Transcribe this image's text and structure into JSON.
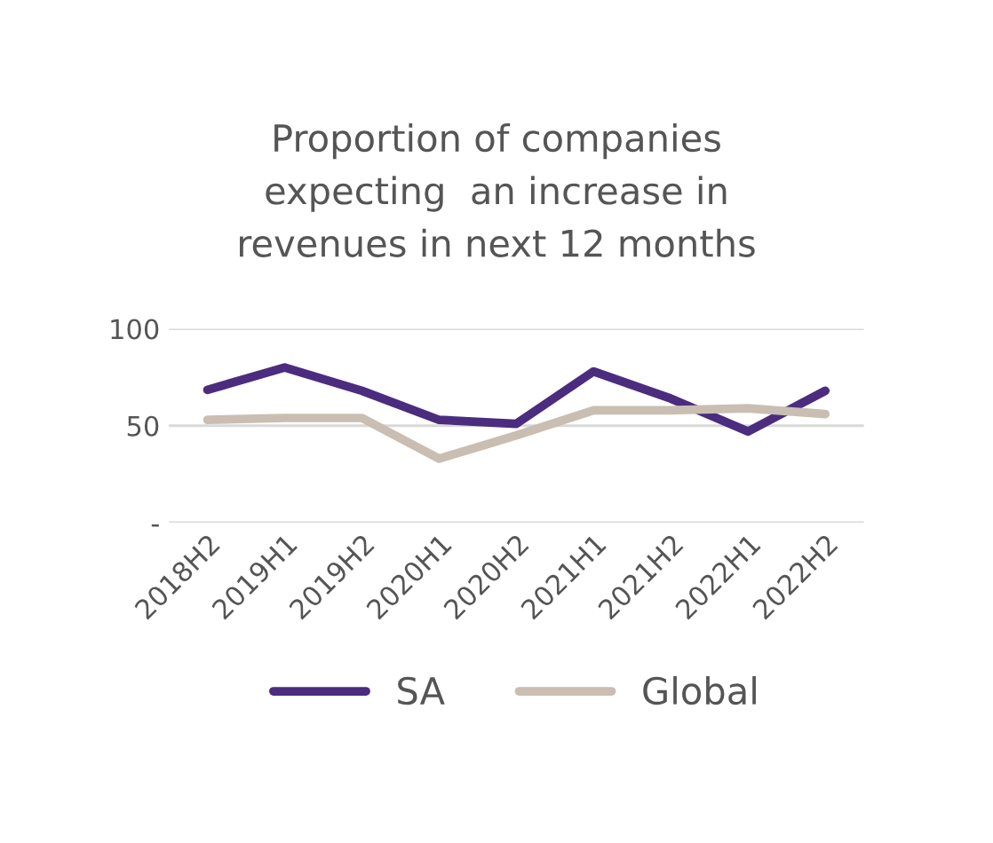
{
  "chart_data": {
    "type": "line",
    "title": "Proportion of companies\nexpecting  an increase in\nrevenues in next 12 months",
    "categories": [
      "2018H2",
      "2019H1",
      "2019H2",
      "2020H1",
      "2020H2",
      "2021H1",
      "2021H2",
      "2022H1",
      "2022H2"
    ],
    "series": [
      {
        "name": "SA",
        "color": "#4b2c7f",
        "values": [
          68.5,
          80,
          68,
          53,
          51,
          78,
          64,
          47,
          68
        ]
      },
      {
        "name": "Global",
        "color": "#c9beb1",
        "values": [
          53,
          54,
          54,
          33,
          45,
          58,
          58,
          59,
          56
        ]
      }
    ],
    "ylim": [
      0,
      100
    ],
    "yticks": [
      {
        "value": 0,
        "label": "-"
      },
      50,
      100
    ],
    "grid": "y",
    "legend": "bottom",
    "marker": "none",
    "line_style": "solid"
  }
}
